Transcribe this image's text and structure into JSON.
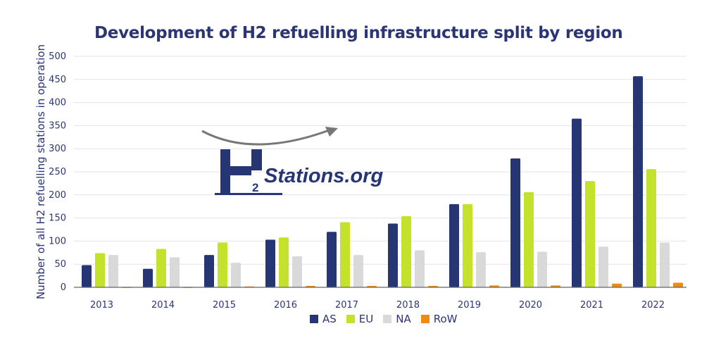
{
  "chart_data": {
    "type": "bar",
    "title": "Development of H2 refuelling infrastructure split by region",
    "xlabel": "",
    "ylabel": "Number of all H2 refuelling stations in operation",
    "ylim": [
      0,
      500
    ],
    "yticks": [
      0,
      50,
      100,
      150,
      200,
      250,
      300,
      350,
      400,
      450,
      500
    ],
    "grid": true,
    "legend": "bottom",
    "categories": [
      "2013",
      "2014",
      "2015",
      "2016",
      "2017",
      "2018",
      "2019",
      "2020",
      "2021",
      "2022"
    ],
    "series": [
      {
        "name": "AS",
        "color": "#263574",
        "values": [
          48,
          40,
          70,
          103,
          120,
          138,
          180,
          279,
          365,
          457
        ]
      },
      {
        "name": "EU",
        "color": "#c4e22c",
        "values": [
          74,
          83,
          97,
          108,
          141,
          154,
          180,
          206,
          230,
          256
        ]
      },
      {
        "name": "NA",
        "color": "#d9d9d9",
        "values": [
          70,
          65,
          53,
          67,
          70,
          80,
          76,
          77,
          88,
          97
        ]
      },
      {
        "name": "RoW",
        "color": "#f08a10",
        "values": [
          1,
          1,
          2,
          3,
          3,
          3,
          4,
          4,
          8,
          10
        ]
      }
    ]
  },
  "logo": {
    "text": "H2Stations.org"
  }
}
